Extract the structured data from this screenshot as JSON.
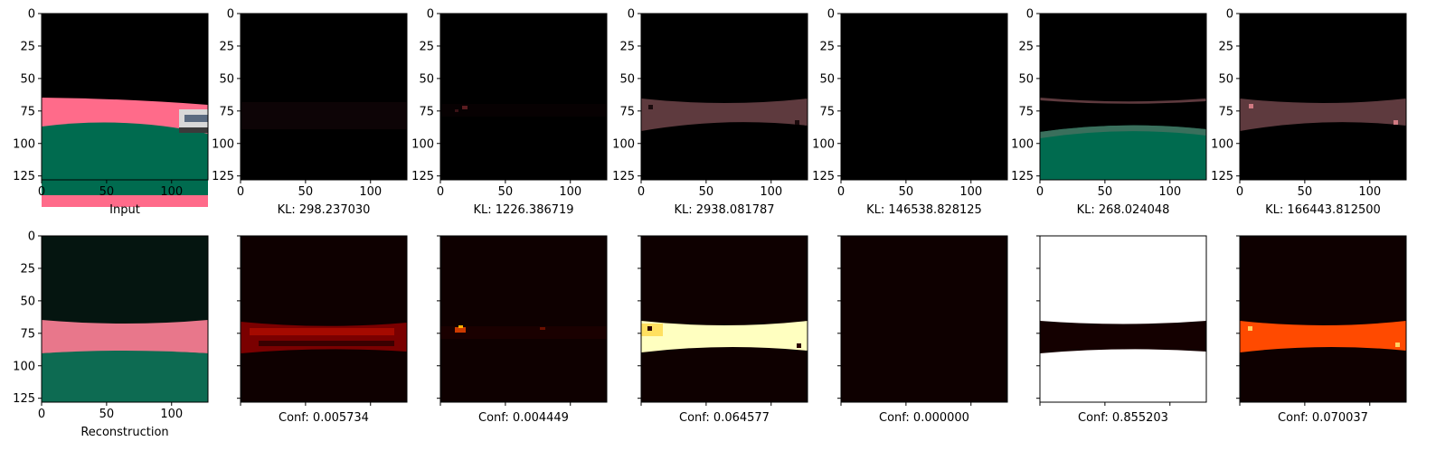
{
  "figure": {
    "top_row_captions": [
      "Input",
      "KL: 298.237030",
      "KL: 1226.386719",
      "KL: 2938.081787",
      "KL: 146538.828125",
      "KL: 268.024048",
      "KL: 166443.812500"
    ],
    "bottom_row_captions": [
      "Reconstruction",
      "Conf: 0.005734",
      "Conf: 0.004449",
      "Conf: 0.064577",
      "Conf: 0.000000",
      "Conf: 0.855203",
      "Conf: 0.070037"
    ],
    "x_tick_labels": [
      "0",
      "50",
      "100"
    ],
    "y_tick_labels": [
      "0",
      "25",
      "50",
      "75",
      "100",
      "125"
    ]
  },
  "chart_data": [
    {
      "type": "image",
      "row": 1,
      "col": 1,
      "xlim": [
        0,
        128
      ],
      "ylim": [
        128,
        0
      ],
      "title": "Input",
      "content": "road scene: black sky, pink road band, green ground, white car at right"
    },
    {
      "type": "image",
      "row": 1,
      "col": 2,
      "xlim": [
        0,
        128
      ],
      "ylim": [
        128,
        0
      ],
      "title": "KL: 298.237030",
      "content": "nearly black, faint dark band"
    },
    {
      "type": "image",
      "row": 1,
      "col": 3,
      "xlim": [
        0,
        128
      ],
      "ylim": [
        128,
        0
      ],
      "title": "KL: 1226.386719",
      "content": "nearly black, small red specks"
    },
    {
      "type": "image",
      "row": 1,
      "col": 4,
      "xlim": [
        0,
        128
      ],
      "ylim": [
        128,
        0
      ],
      "title": "KL: 2938.081787",
      "content": "dim pink road band"
    },
    {
      "type": "image",
      "row": 1,
      "col": 5,
      "xlim": [
        0,
        128
      ],
      "ylim": [
        128,
        0
      ],
      "title": "KL: 146538.828125",
      "content": "black"
    },
    {
      "type": "image",
      "row": 1,
      "col": 6,
      "xlim": [
        0,
        128
      ],
      "ylim": [
        128,
        0
      ],
      "title": "KL: 268.024048",
      "content": "green ground, dark road band"
    },
    {
      "type": "image",
      "row": 1,
      "col": 7,
      "xlim": [
        0,
        128
      ],
      "ylim": [
        128,
        0
      ],
      "title": "KL: 166443.812500",
      "content": "dim pink road band"
    },
    {
      "type": "image",
      "row": 2,
      "col": 1,
      "xlim": [
        0,
        128
      ],
      "ylim": [
        128,
        0
      ],
      "title": "Reconstruction",
      "content": "reconstructed road scene"
    },
    {
      "type": "heatmap",
      "row": 2,
      "col": 2,
      "colormap": "hot",
      "title": "Conf: 0.005734"
    },
    {
      "type": "heatmap",
      "row": 2,
      "col": 3,
      "colormap": "hot",
      "title": "Conf: 0.004449"
    },
    {
      "type": "heatmap",
      "row": 2,
      "col": 4,
      "colormap": "hot",
      "title": "Conf: 0.064577"
    },
    {
      "type": "heatmap",
      "row": 2,
      "col": 5,
      "colormap": "hot",
      "title": "Conf: 0.000000"
    },
    {
      "type": "heatmap",
      "row": 2,
      "col": 6,
      "colormap": "hot",
      "title": "Conf: 0.855203"
    },
    {
      "type": "heatmap",
      "row": 2,
      "col": 7,
      "colormap": "hot",
      "title": "Conf: 0.070037"
    }
  ],
  "colors": {
    "sky": "#000000",
    "road": "#ff6b8a",
    "ground": "#006b4f",
    "recon_sky": "#051510",
    "recon_road": "#e8778b",
    "recon_ground": "#0d6b52",
    "dim_road": "#5e3a3e",
    "heat_dark": "#0e0000",
    "heat_red": "#8a0000",
    "heat_orange": "#ff4a00",
    "heat_yellow": "#ffffb0",
    "heat_white": "#ffffff"
  }
}
